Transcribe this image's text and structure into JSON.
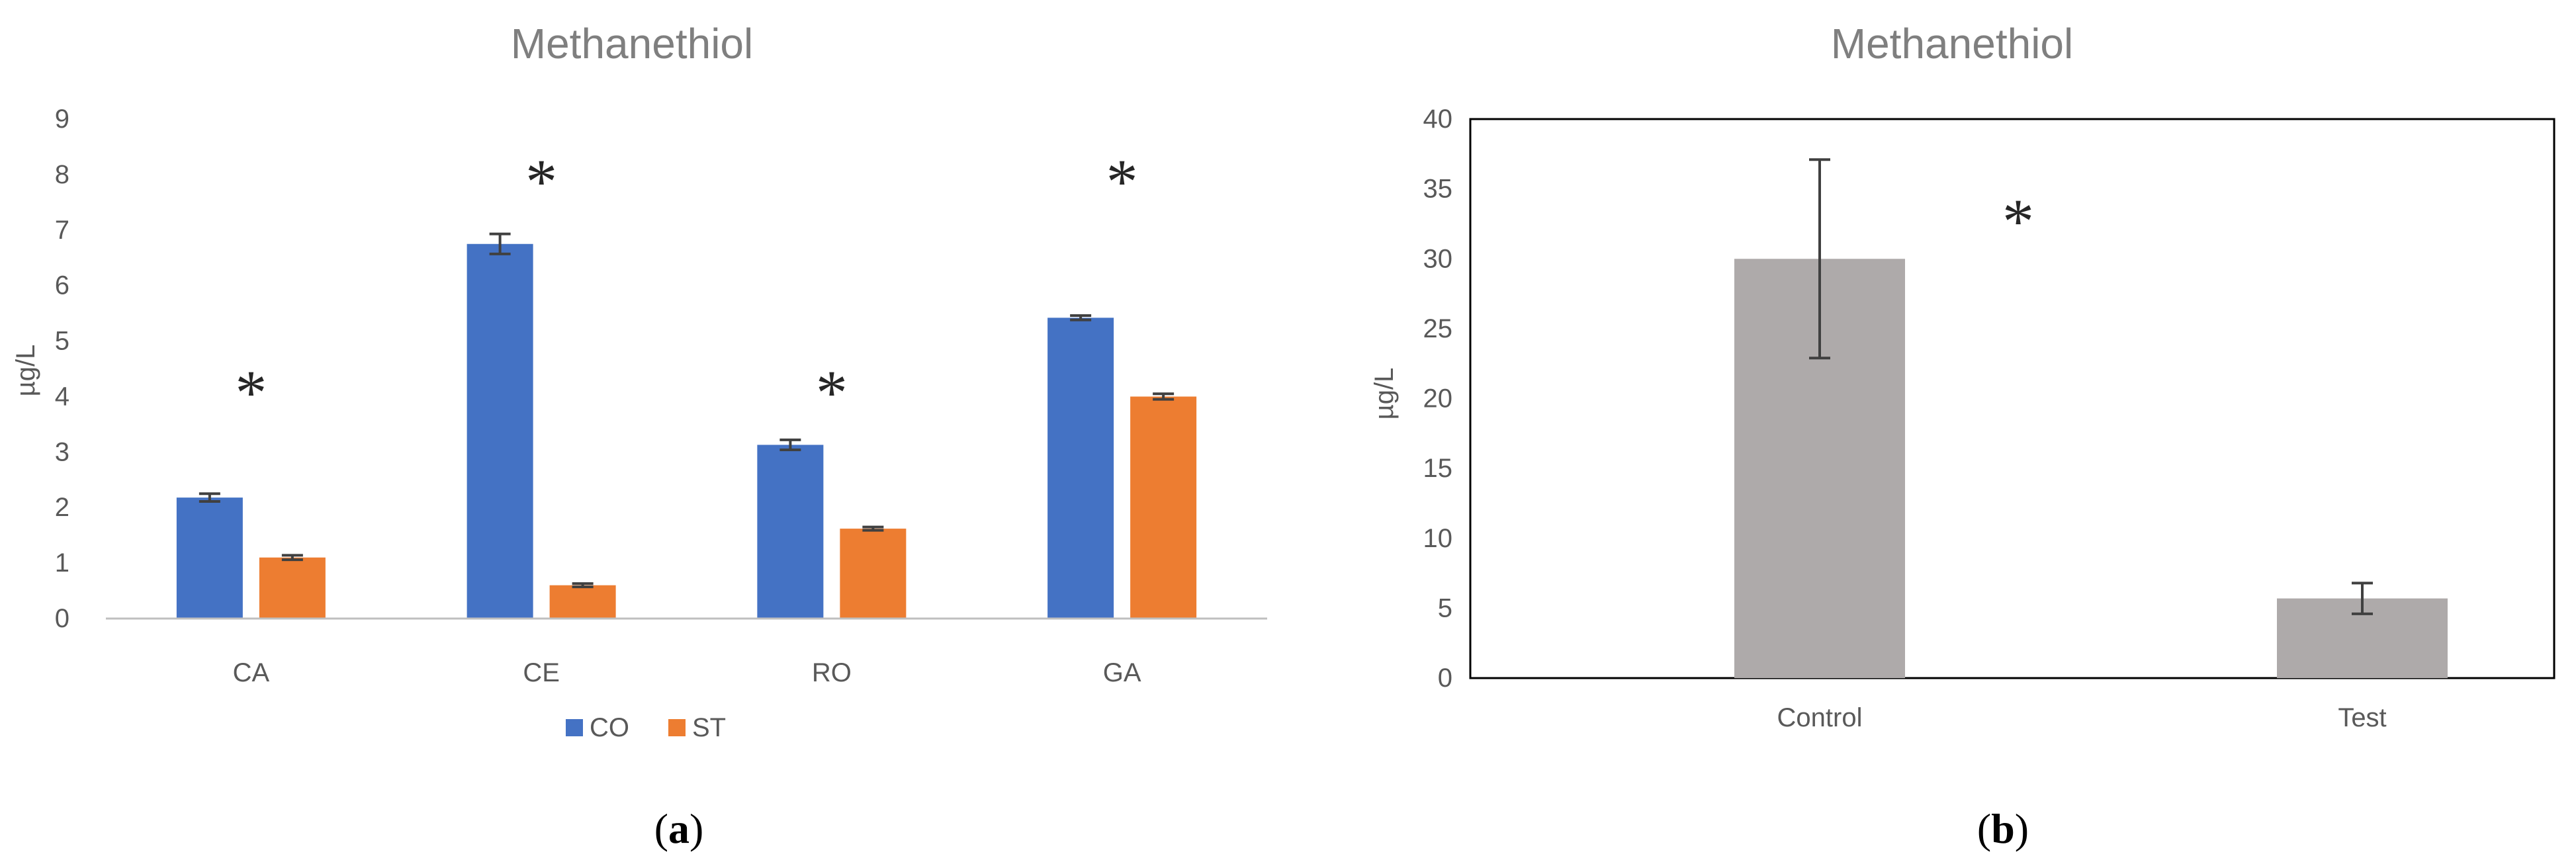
{
  "colors": {
    "co": "#4472c4",
    "st": "#ed7d31",
    "gray_bar": "#aeaaaa",
    "axis": "#bfbfbf",
    "frame": "#000000",
    "error": "#404040"
  },
  "chart_data": [
    {
      "type": "bar",
      "panel": "(a)",
      "panel_letter": "a",
      "title": "Methanethiol",
      "xlabel": "",
      "ylabel": "µg/L",
      "ylim": [
        0,
        9
      ],
      "yticks": [
        "0",
        "1",
        "2",
        "3",
        "4",
        "5",
        "6",
        "7",
        "8",
        "9"
      ],
      "categories": [
        "CA",
        "CE",
        "RO",
        "GA"
      ],
      "series": [
        {
          "name": "CO",
          "color": "#4472c4",
          "values": [
            2.18,
            6.75,
            3.13,
            5.42
          ],
          "errors": [
            0.07,
            0.18,
            0.09,
            0.04
          ]
        },
        {
          "name": "ST",
          "color": "#ed7d31",
          "values": [
            1.1,
            0.6,
            1.62,
            4.0
          ],
          "errors": [
            0.04,
            0.03,
            0.03,
            0.05
          ]
        }
      ],
      "significance": [
        {
          "category": "CA",
          "label": "*",
          "y": 4.4
        },
        {
          "category": "CE",
          "label": "*",
          "y": 8.2
        },
        {
          "category": "RO",
          "label": "*",
          "y": 4.4
        },
        {
          "category": "GA",
          "label": "*",
          "y": 8.2
        }
      ],
      "legend": {
        "position": "bottom",
        "entries": [
          "CO",
          "ST"
        ]
      },
      "grid": false
    },
    {
      "type": "bar",
      "panel": "(b)",
      "panel_letter": "b",
      "title": "Methanethiol",
      "xlabel": "",
      "ylabel": "µg/L",
      "ylim": [
        0,
        40
      ],
      "yticks": [
        "0",
        "5",
        "10",
        "15",
        "20",
        "25",
        "30",
        "35",
        "40"
      ],
      "categories": [
        "Control",
        "Test"
      ],
      "series": [
        {
          "name": "",
          "color": "#aeaaaa",
          "values": [
            30.0,
            5.7
          ],
          "errors": [
            7.1,
            1.1
          ]
        }
      ],
      "significance": [
        {
          "between": [
            "Control",
            "Test"
          ],
          "label": "*",
          "y": 34
        }
      ],
      "legend": null,
      "grid": false
    }
  ]
}
